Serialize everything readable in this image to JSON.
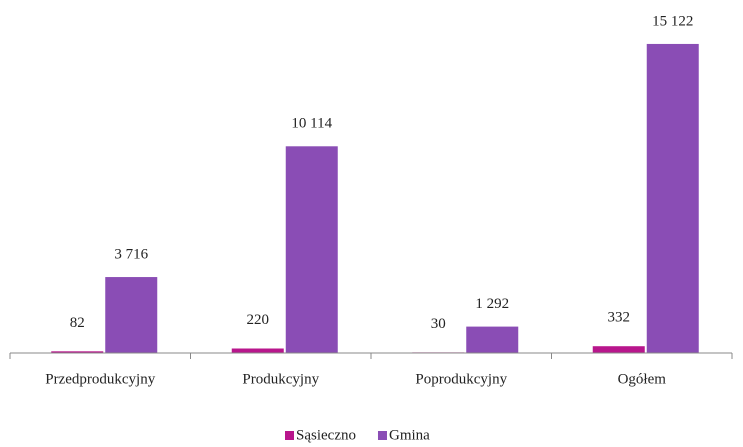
{
  "chart_data": {
    "type": "bar",
    "categories": [
      "Przedprodukcyjny",
      "Produkcyjny",
      "Poprodukcyjny",
      "Ogółem"
    ],
    "series": [
      {
        "name": "Sąsieczno",
        "color": "#b8168c",
        "values": [
          82,
          220,
          30,
          332
        ],
        "value_labels": [
          "82",
          "220",
          "30",
          "332"
        ]
      },
      {
        "name": "Gmina",
        "color": "#8a4db5",
        "values": [
          3716,
          10114,
          1292,
          15122
        ],
        "value_labels": [
          "3 716",
          "10 114",
          "1 292",
          "15 122"
        ]
      }
    ],
    "ylim": [
      0,
      16000
    ],
    "legend": "bottom"
  }
}
